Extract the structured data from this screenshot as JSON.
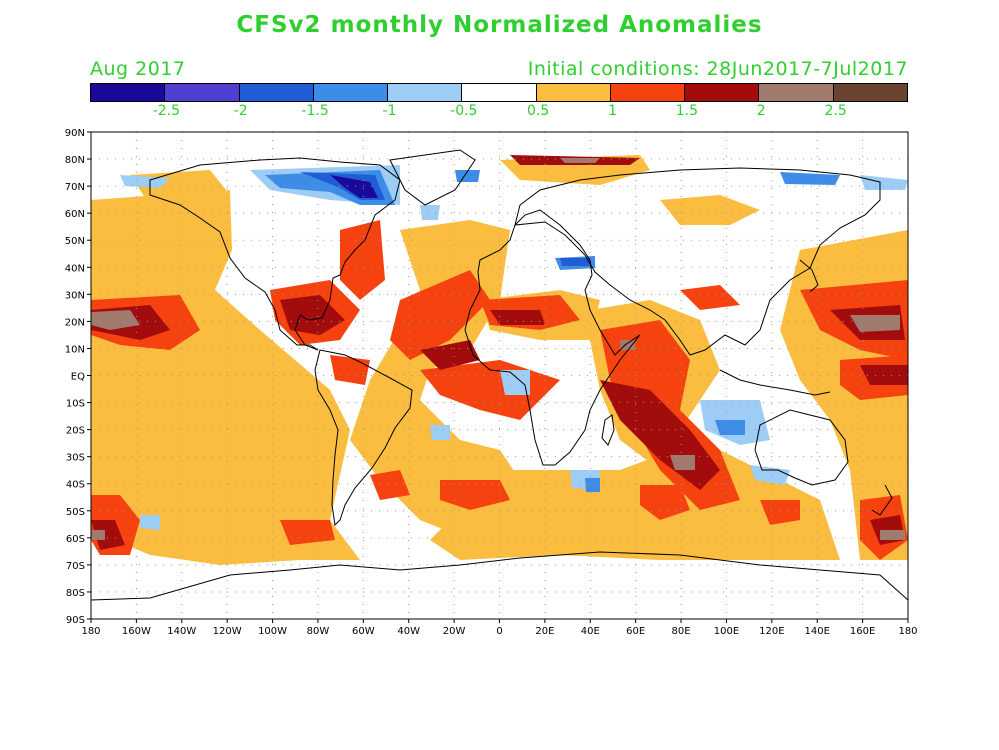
{
  "title": "CFSv2 monthly Normalized Anomalies",
  "subtitle_left": "Aug 2017",
  "subtitle_right": "Initial conditions: 28Jun2017-7Jul2017",
  "colorbar": {
    "colors": [
      "#1a0a9a",
      "#4f3fd2",
      "#1f5ed6",
      "#3d8de8",
      "#9dcdf5",
      "#ffffff",
      "#fbbd40",
      "#f5420f",
      "#a30c0c",
      "#a07a6c",
      "#6a4230"
    ],
    "labels": [
      "-2.5",
      "-2",
      "-1.5",
      "-1",
      "-0.5",
      "0.5",
      "1",
      "1.5",
      "2",
      "2.5"
    ]
  },
  "map": {
    "lat_labels": [
      "90N",
      "80N",
      "70N",
      "60N",
      "50N",
      "40N",
      "30N",
      "20N",
      "10N",
      "EQ",
      "10S",
      "20S",
      "30S",
      "40S",
      "50S",
      "60S",
      "70S",
      "80S",
      "90S"
    ],
    "lon_labels": [
      "180",
      "160W",
      "140W",
      "120W",
      "100W",
      "80W",
      "60W",
      "40W",
      "20W",
      "0",
      "20E",
      "40E",
      "60E",
      "80E",
      "100E",
      "120E",
      "140E",
      "160E",
      "180"
    ],
    "fill_colors": {
      "c0": "#fbbd40",
      "c1": "#f5420f",
      "c2": "#a30c0c",
      "c3": "#a07a6c",
      "n0": "#9dcdf5",
      "n1": "#3d8de8",
      "n2": "#1f5ed6",
      "n3": "#1a0a9a"
    }
  }
}
